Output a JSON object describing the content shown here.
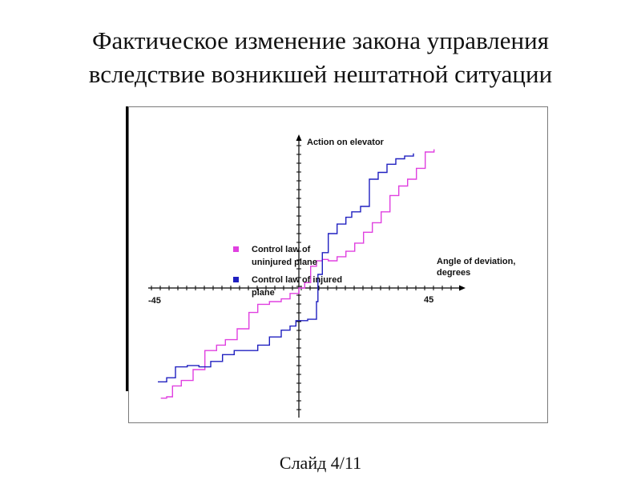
{
  "slide": {
    "title_line1": "Фактическое изменение закона управления",
    "title_line2": "вследствие возникшей нештатной ситуации",
    "footer": "Слайд 4/11"
  },
  "chart_data": {
    "type": "line",
    "ylabel": "Action on elevator",
    "xlabel_line1": "Angle of deviation,",
    "xlabel_line2": "degrees",
    "x_min_label": "-45",
    "x_max_label": "45",
    "xlim": [
      -45,
      45
    ],
    "ylim": [
      -1,
      1
    ],
    "legend_position": "bottom-right",
    "series": [
      {
        "name_line1": "Control law of",
        "name_line2": "uninjured plane",
        "color": "#e040e0",
        "points": [
          [
            -47,
            -0.81
          ],
          [
            -45,
            -0.8
          ],
          [
            -43,
            -0.72
          ],
          [
            -40,
            -0.68
          ],
          [
            -36,
            -0.6
          ],
          [
            -32,
            -0.46
          ],
          [
            -28,
            -0.42
          ],
          [
            -25,
            -0.38
          ],
          [
            -21,
            -0.3
          ],
          [
            -17,
            -0.18
          ],
          [
            -14,
            -0.12
          ],
          [
            -10,
            -0.1
          ],
          [
            -6,
            -0.08
          ],
          [
            -3,
            -0.04
          ],
          [
            0,
            0.0
          ],
          [
            2,
            0.04
          ],
          [
            4,
            0.16
          ],
          [
            6,
            0.2
          ],
          [
            8,
            0.21
          ],
          [
            10,
            0.2
          ],
          [
            13,
            0.23
          ],
          [
            16,
            0.27
          ],
          [
            19,
            0.33
          ],
          [
            22,
            0.41
          ],
          [
            25,
            0.48
          ],
          [
            28,
            0.56
          ],
          [
            31,
            0.68
          ],
          [
            34,
            0.75
          ],
          [
            37,
            0.8
          ],
          [
            40,
            0.88
          ],
          [
            43,
            1.0
          ],
          [
            46,
            1.02
          ]
        ]
      },
      {
        "name_line1": "Control law of injured",
        "name_line2": "plane",
        "color": "#2020c0",
        "points": [
          [
            -48,
            -0.69
          ],
          [
            -45,
            -0.66
          ],
          [
            -42,
            -0.58
          ],
          [
            -38,
            -0.57
          ],
          [
            -34,
            -0.58
          ],
          [
            -30,
            -0.54
          ],
          [
            -26,
            -0.49
          ],
          [
            -22,
            -0.46
          ],
          [
            -18,
            -0.46
          ],
          [
            -14,
            -0.42
          ],
          [
            -10,
            -0.36
          ],
          [
            -6,
            -0.31
          ],
          [
            -3,
            -0.28
          ],
          [
            -1,
            -0.24
          ],
          [
            3,
            -0.23
          ],
          [
            6,
            -0.1
          ],
          [
            6.5,
            0.1
          ],
          [
            8,
            0.26
          ],
          [
            10,
            0.4
          ],
          [
            13,
            0.47
          ],
          [
            16,
            0.52
          ],
          [
            18,
            0.56
          ],
          [
            21,
            0.6
          ],
          [
            24,
            0.8
          ],
          [
            27,
            0.85
          ],
          [
            30,
            0.91
          ],
          [
            33,
            0.95
          ],
          [
            36,
            0.97
          ],
          [
            39,
            0.99
          ]
        ]
      }
    ]
  }
}
